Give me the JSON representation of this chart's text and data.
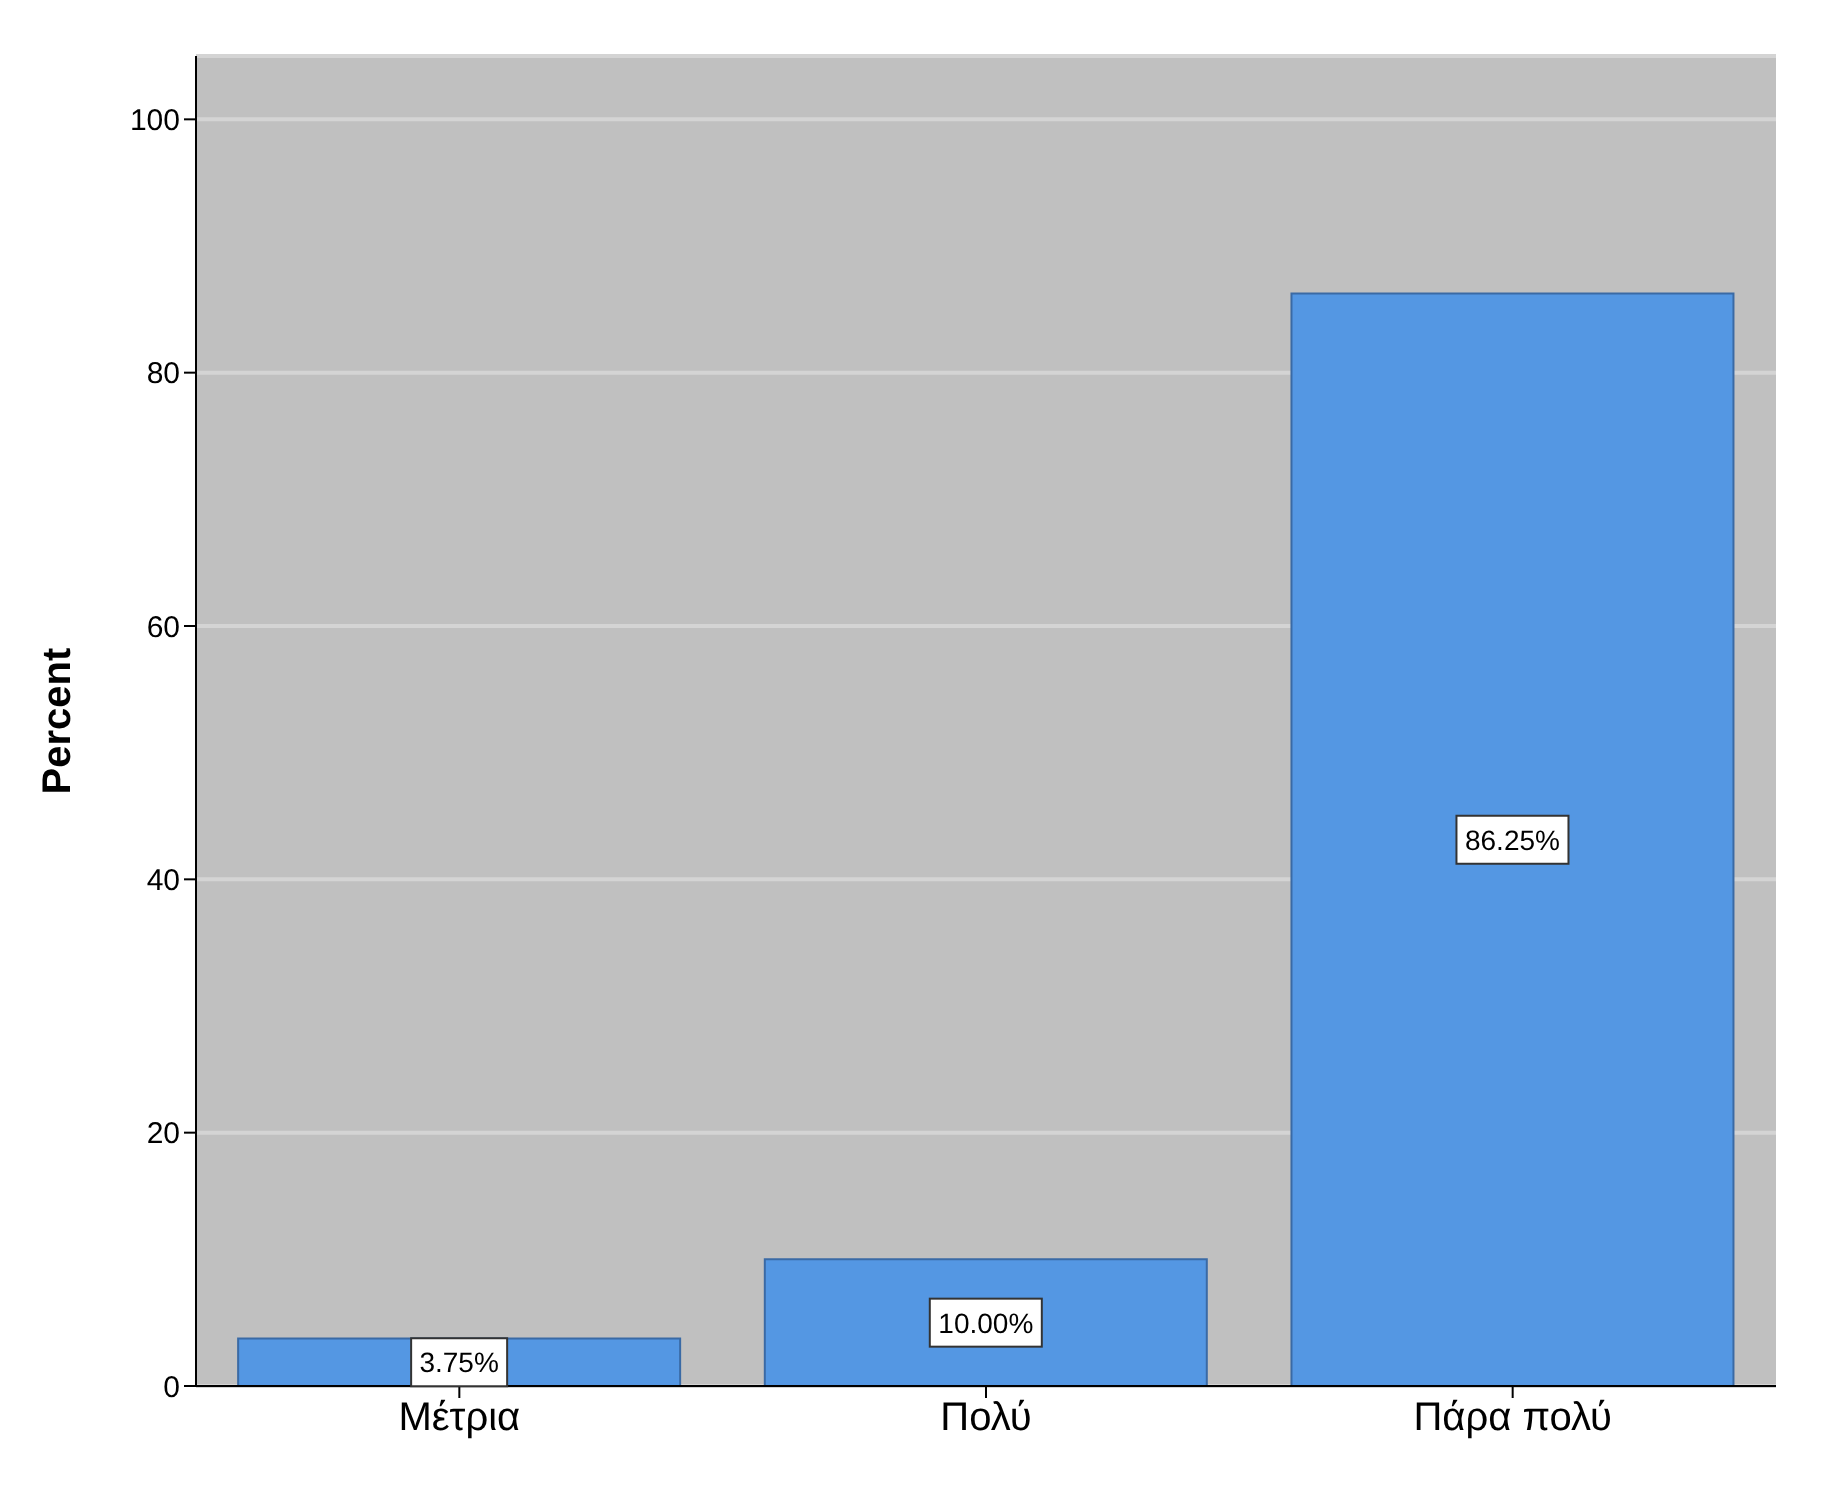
{
  "chart_data": {
    "type": "bar",
    "ylabel": "Percent",
    "categories": [
      "Μέτρια",
      "Πολύ",
      "Πάρα πολύ"
    ],
    "values": [
      3.75,
      10.0,
      86.25
    ],
    "value_labels": [
      "3.75%",
      "10.00%",
      "86.25%"
    ],
    "color": "#5497e3",
    "ylim": [
      0,
      105
    ],
    "yticks": [
      0,
      20,
      40,
      60,
      80,
      100
    ],
    "grid": "y"
  }
}
